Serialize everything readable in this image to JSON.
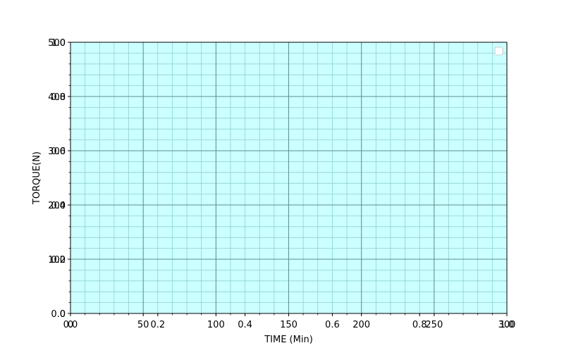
{
  "chart_data": {
    "type": "line",
    "title": "",
    "xlabel": "TIME (Min)",
    "ylabel": "TORQUE(N)",
    "grid": true,
    "legend": {
      "placement": "top-right",
      "entries": []
    },
    "colors": {
      "plot_background": "#ccffff",
      "major_grid": "#5f8f8f",
      "minor_grid": "#8fd0d0"
    },
    "axes": [
      {
        "name": "primary",
        "xlim": [
          0,
          300
        ],
        "ylim": [
          0,
          500
        ],
        "xticks": [
          0,
          50,
          100,
          150,
          200,
          250,
          300
        ],
        "xtick_labels": [
          "0",
          "50",
          "100",
          "150",
          "200",
          "250",
          "300"
        ],
        "yticks": [
          0,
          100,
          200,
          300,
          400,
          500
        ],
        "ytick_labels": [
          "0",
          "100",
          "200",
          "300",
          "400",
          "500"
        ]
      },
      {
        "name": "overlay",
        "xlim": [
          0.0,
          1.0
        ],
        "ylim": [
          0.0,
          1.0
        ],
        "xticks": [
          0.0,
          0.2,
          0.4,
          0.6,
          0.8,
          1.0
        ],
        "xtick_labels": [
          "0.0",
          "0.2",
          "0.4",
          "0.6",
          "0.8",
          "1.0"
        ],
        "yticks": [
          0.0,
          0.2,
          0.4,
          0.6,
          0.8,
          1.0
        ],
        "ytick_labels": [
          "0.0",
          "0.2",
          "0.4",
          "0.6",
          "0.8",
          "1.0"
        ]
      }
    ],
    "series": []
  }
}
